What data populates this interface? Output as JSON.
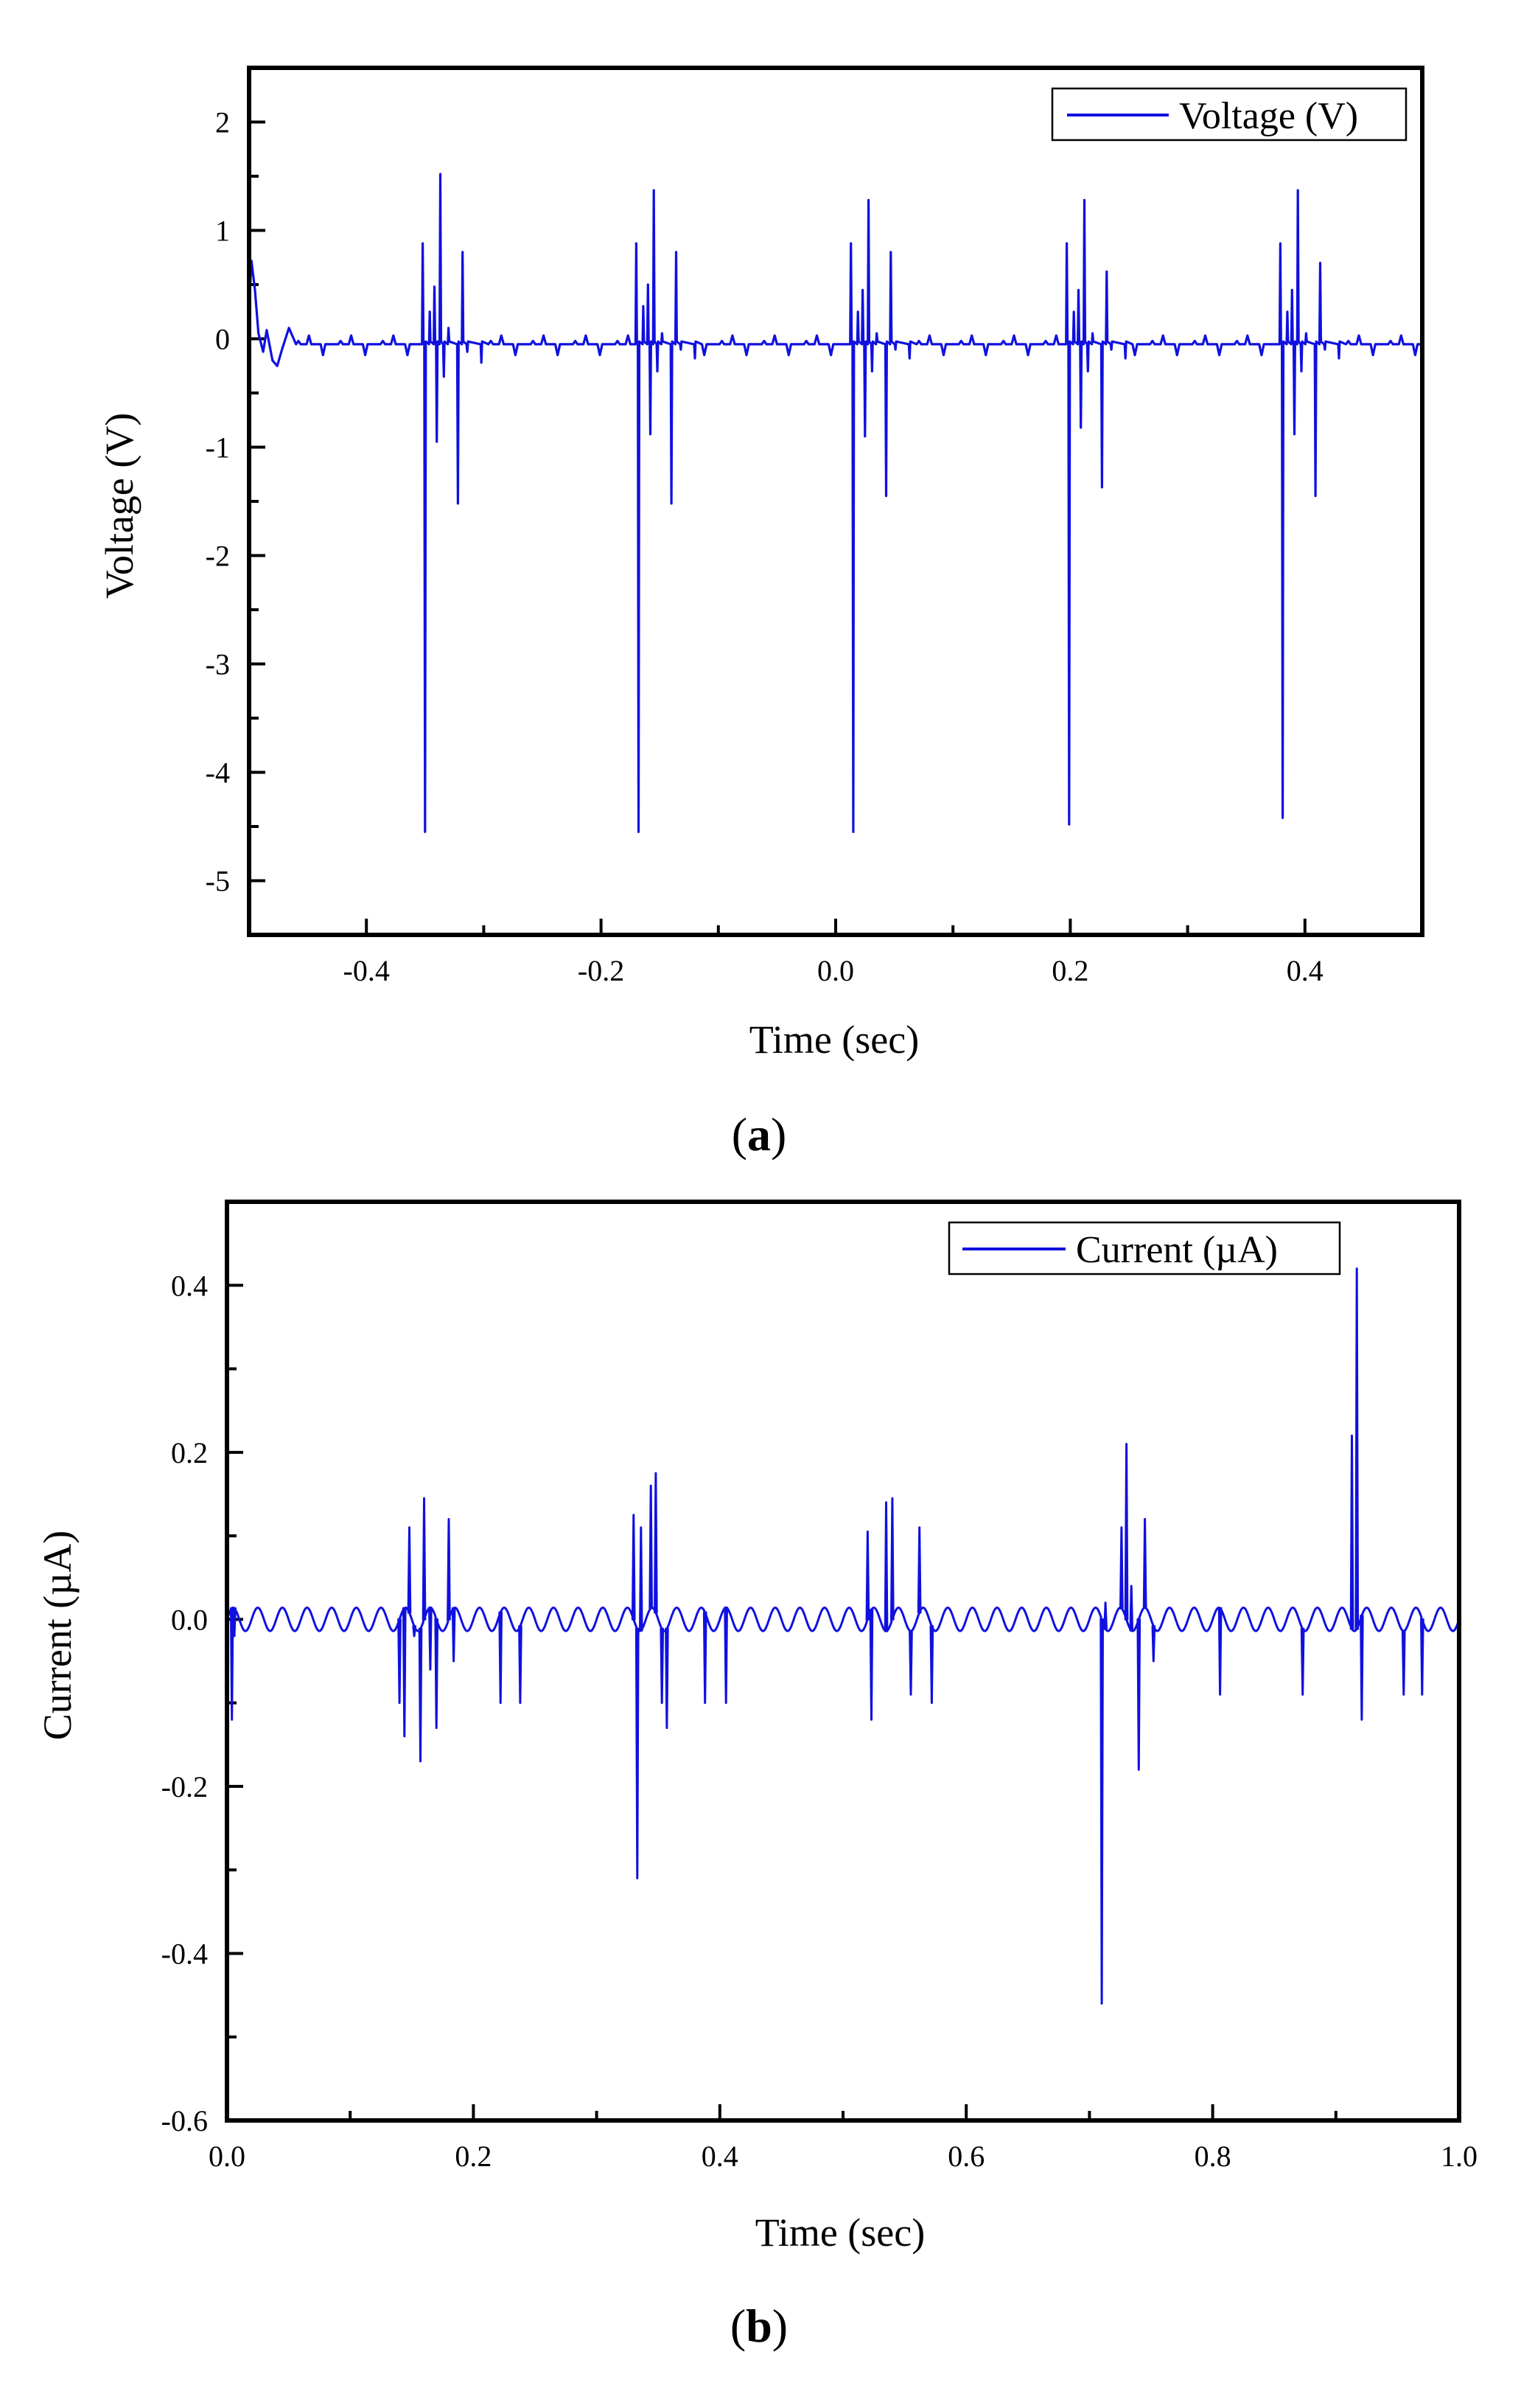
{
  "colors": {
    "series": "#1010e0",
    "axis": "#000000"
  },
  "chart_data": [
    {
      "type": "line",
      "panel_label": "a",
      "xlabel": "Time (sec)",
      "ylabel": "Voltage (V)",
      "xlim": [
        -0.5,
        0.5
      ],
      "ylim": [
        -5.5,
        2.5
      ],
      "xticks": [
        -0.4,
        -0.2,
        0.0,
        0.2,
        0.4
      ],
      "xtick_labels": [
        "-0.4",
        "-0.2",
        "0.0",
        "0.2",
        "0.4"
      ],
      "yticks": [
        2,
        1,
        0,
        -1,
        -2,
        -3,
        -4,
        -5
      ],
      "ytick_labels": [
        "2",
        "1",
        "0",
        "-1",
        "-2",
        "-3",
        "-4",
        "-5"
      ],
      "legend": {
        "label": "Voltage (V)",
        "position": "top-right"
      },
      "baseline": {
        "value": -0.05,
        "noise": [
          0.03,
          0.08,
          -0.1
        ]
      },
      "start_transient": [
        {
          "t": -0.5,
          "v": 0.3
        },
        {
          "t": -0.498,
          "v": 0.72
        },
        {
          "t": -0.495,
          "v": 0.45
        },
        {
          "t": -0.492,
          "v": 0.05
        },
        {
          "t": -0.488,
          "v": -0.12
        },
        {
          "t": -0.485,
          "v": 0.08
        },
        {
          "t": -0.48,
          "v": -0.2
        },
        {
          "t": -0.476,
          "v": -0.25
        },
        {
          "t": -0.472,
          "v": -0.1
        },
        {
          "t": -0.466,
          "v": 0.1
        },
        {
          "t": -0.46,
          "v": -0.05
        }
      ],
      "bursts": [
        {
          "t0": -0.352,
          "spikes": [
            {
              "dt": 0.0,
              "v": 0.88
            },
            {
              "dt": 0.002,
              "v": -4.55
            },
            {
              "dt": 0.006,
              "v": 0.25
            },
            {
              "dt": 0.01,
              "v": 0.48
            },
            {
              "dt": 0.012,
              "v": -0.95
            },
            {
              "dt": 0.015,
              "v": 1.52
            },
            {
              "dt": 0.018,
              "v": -0.35
            },
            {
              "dt": 0.022,
              "v": 0.1
            },
            {
              "dt": 0.03,
              "v": -1.52
            },
            {
              "dt": 0.034,
              "v": 0.8
            },
            {
              "dt": 0.038,
              "v": -0.12
            },
            {
              "dt": 0.05,
              "v": -0.22
            }
          ]
        },
        {
          "t0": -0.17,
          "spikes": [
            {
              "dt": 0.0,
              "v": 0.88
            },
            {
              "dt": 0.002,
              "v": -4.55
            },
            {
              "dt": 0.006,
              "v": 0.3
            },
            {
              "dt": 0.01,
              "v": 0.5
            },
            {
              "dt": 0.012,
              "v": -0.88
            },
            {
              "dt": 0.015,
              "v": 1.37
            },
            {
              "dt": 0.018,
              "v": -0.3
            },
            {
              "dt": 0.022,
              "v": 0.05
            },
            {
              "dt": 0.03,
              "v": -1.52
            },
            {
              "dt": 0.034,
              "v": 0.8
            },
            {
              "dt": 0.038,
              "v": -0.1
            },
            {
              "dt": 0.05,
              "v": -0.18
            }
          ]
        },
        {
          "t0": 0.013,
          "spikes": [
            {
              "dt": 0.0,
              "v": 0.88
            },
            {
              "dt": 0.002,
              "v": -4.55
            },
            {
              "dt": 0.006,
              "v": 0.25
            },
            {
              "dt": 0.01,
              "v": 0.45
            },
            {
              "dt": 0.012,
              "v": -0.9
            },
            {
              "dt": 0.015,
              "v": 1.28
            },
            {
              "dt": 0.018,
              "v": -0.3
            },
            {
              "dt": 0.022,
              "v": 0.05
            },
            {
              "dt": 0.03,
              "v": -1.45
            },
            {
              "dt": 0.034,
              "v": 0.8
            },
            {
              "dt": 0.038,
              "v": -0.1
            },
            {
              "dt": 0.05,
              "v": -0.18
            }
          ]
        },
        {
          "t0": 0.197,
          "spikes": [
            {
              "dt": 0.0,
              "v": 0.88
            },
            {
              "dt": 0.002,
              "v": -4.48
            },
            {
              "dt": 0.006,
              "v": 0.25
            },
            {
              "dt": 0.01,
              "v": 0.45
            },
            {
              "dt": 0.012,
              "v": -0.82
            },
            {
              "dt": 0.015,
              "v": 1.28
            },
            {
              "dt": 0.018,
              "v": -0.3
            },
            {
              "dt": 0.022,
              "v": 0.05
            },
            {
              "dt": 0.03,
              "v": -1.37
            },
            {
              "dt": 0.034,
              "v": 0.62
            },
            {
              "dt": 0.038,
              "v": -0.1
            },
            {
              "dt": 0.05,
              "v": -0.18
            }
          ]
        },
        {
          "t0": 0.379,
          "spikes": [
            {
              "dt": 0.0,
              "v": 0.88
            },
            {
              "dt": 0.002,
              "v": -4.42
            },
            {
              "dt": 0.006,
              "v": 0.25
            },
            {
              "dt": 0.01,
              "v": 0.45
            },
            {
              "dt": 0.012,
              "v": -0.88
            },
            {
              "dt": 0.015,
              "v": 1.37
            },
            {
              "dt": 0.018,
              "v": -0.3
            },
            {
              "dt": 0.022,
              "v": 0.05
            },
            {
              "dt": 0.03,
              "v": -1.45
            },
            {
              "dt": 0.034,
              "v": 0.7
            },
            {
              "dt": 0.038,
              "v": -0.1
            },
            {
              "dt": 0.05,
              "v": -0.18
            }
          ]
        }
      ]
    },
    {
      "type": "line",
      "panel_label": "b",
      "xlabel": "Time (sec)",
      "ylabel": "Current (µA)",
      "xlim": [
        0.0,
        1.0
      ],
      "ylim": [
        -0.6,
        0.5
      ],
      "xticks": [
        0.0,
        0.2,
        0.4,
        0.6,
        0.8,
        1.0
      ],
      "xtick_labels": [
        "0.0",
        "0.2",
        "0.4",
        "0.6",
        "0.8",
        "1.0"
      ],
      "yticks": [
        0.4,
        0.2,
        0.0,
        -0.2,
        -0.4,
        -0.6
      ],
      "ytick_labels": [
        "0.4",
        "0.2",
        "0.0",
        "-0.2",
        "-0.4",
        "-0.6"
      ],
      "legend": {
        "label": "Current (µA)",
        "position": "top-right"
      },
      "oscillation": {
        "amplitude": 0.014,
        "period": 0.02
      },
      "spikes": [
        {
          "t": 0.004,
          "v": -0.12
        },
        {
          "t": 0.006,
          "v": -0.02
        },
        {
          "t": 0.14,
          "v": -0.1
        },
        {
          "t": 0.144,
          "v": -0.14
        },
        {
          "t": 0.148,
          "v": 0.11
        },
        {
          "t": 0.152,
          "v": -0.02
        },
        {
          "t": 0.157,
          "v": -0.17
        },
        {
          "t": 0.16,
          "v": 0.145
        },
        {
          "t": 0.165,
          "v": -0.06
        },
        {
          "t": 0.17,
          "v": -0.13
        },
        {
          "t": 0.18,
          "v": 0.12
        },
        {
          "t": 0.184,
          "v": -0.05
        },
        {
          "t": 0.222,
          "v": -0.1
        },
        {
          "t": 0.238,
          "v": -0.1
        },
        {
          "t": 0.33,
          "v": 0.125
        },
        {
          "t": 0.333,
          "v": -0.31
        },
        {
          "t": 0.336,
          "v": 0.11
        },
        {
          "t": 0.344,
          "v": 0.16
        },
        {
          "t": 0.348,
          "v": 0.175
        },
        {
          "t": 0.353,
          "v": -0.1
        },
        {
          "t": 0.357,
          "v": -0.13
        },
        {
          "t": 0.388,
          "v": -0.1
        },
        {
          "t": 0.405,
          "v": -0.1
        },
        {
          "t": 0.52,
          "v": 0.105
        },
        {
          "t": 0.523,
          "v": -0.12
        },
        {
          "t": 0.535,
          "v": 0.14
        },
        {
          "t": 0.54,
          "v": 0.145
        },
        {
          "t": 0.555,
          "v": -0.09
        },
        {
          "t": 0.562,
          "v": 0.11
        },
        {
          "t": 0.572,
          "v": -0.1
        },
        {
          "t": 0.71,
          "v": -0.46
        },
        {
          "t": 0.713,
          "v": 0.02
        },
        {
          "t": 0.726,
          "v": 0.11
        },
        {
          "t": 0.73,
          "v": 0.21
        },
        {
          "t": 0.734,
          "v": 0.04
        },
        {
          "t": 0.74,
          "v": -0.18
        },
        {
          "t": 0.745,
          "v": 0.12
        },
        {
          "t": 0.752,
          "v": -0.05
        },
        {
          "t": 0.806,
          "v": -0.09
        },
        {
          "t": 0.873,
          "v": -0.09
        },
        {
          "t": 0.913,
          "v": 0.22
        },
        {
          "t": 0.917,
          "v": 0.42
        },
        {
          "t": 0.921,
          "v": -0.12
        },
        {
          "t": 0.955,
          "v": -0.09
        },
        {
          "t": 0.97,
          "v": -0.09
        }
      ]
    }
  ]
}
